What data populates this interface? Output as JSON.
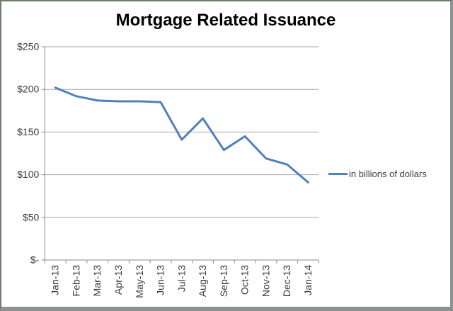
{
  "window": {
    "background": "#ffffff",
    "frame_border_top_left_color": "#6d7d68",
    "frame_border_bottom_right_color": "#8f9190"
  },
  "chart_data": {
    "type": "line",
    "title": "Mortgage Related Issuance",
    "categories": [
      "Jan-13",
      "Feb-13",
      "Mar-13",
      "Apr-13",
      "May-13",
      "Jun-13",
      "Jul-13",
      "Aug-13",
      "Sep-13",
      "Oct-13",
      "Nov-13",
      "Dec-13",
      "Jan-14"
    ],
    "series": [
      {
        "name": "in billions of dollars",
        "values": [
          202,
          192,
          187,
          186,
          186,
          185,
          141,
          166,
          129,
          145,
          119,
          112,
          91
        ],
        "color": "#4F81BD",
        "line_width": 3
      }
    ],
    "xlabel": "",
    "ylabel": "",
    "ylim": [
      0,
      250
    ],
    "y_ticks": [
      {
        "value": 0,
        "label": "$-"
      },
      {
        "value": 50,
        "label": "$50"
      },
      {
        "value": 100,
        "label": "$100"
      },
      {
        "value": 150,
        "label": "$150"
      },
      {
        "value": 200,
        "label": "$200"
      },
      {
        "value": 250,
        "label": "$250"
      }
    ],
    "grid": "horizontal",
    "gridline_color": "#a6a6a6",
    "axis_color": "#898989",
    "tick_label_color": "#3a3a3a",
    "legend_position": "right",
    "x_tick_label_rotation": 90
  }
}
